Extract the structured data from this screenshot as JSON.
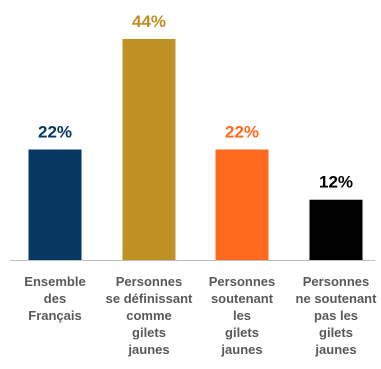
{
  "chart_data": {
    "type": "bar",
    "categories": [
      "Ensemble\ndes\nFrançais",
      "Personnes\nse définissant\ncomme\ngilets\njaunes",
      "Personnes\nsoutenant\nles\ngilets\njaunes",
      "Personnes\nne soutenant\npas les\ngilets\njaunes"
    ],
    "values": [
      22,
      44,
      22,
      12
    ],
    "value_labels": [
      "22%",
      "44%",
      "22%",
      "12%"
    ],
    "colors": [
      "#073763",
      "#bf9124",
      "#ff6a1f",
      "#000000"
    ],
    "ylim": [
      0,
      44
    ],
    "grid": false,
    "legend": "none"
  }
}
